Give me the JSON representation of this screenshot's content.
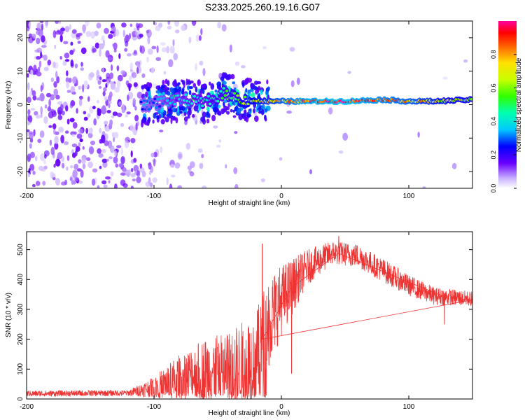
{
  "title": "S233.2025.260.19.16.G07",
  "chart_data": [
    {
      "type": "heatmap",
      "xlabel": "Height of straight line (km)",
      "ylabel": "Frequency (Hz)",
      "xlim": [
        -200,
        150
      ],
      "ylim": [
        -25,
        25
      ],
      "xticks": [
        -200,
        -100,
        0,
        100
      ],
      "yticks": [
        -20,
        -10,
        0,
        10,
        20
      ],
      "colorbar": {
        "label": "Normalized spectral amplitude",
        "range": [
          0,
          1
        ],
        "ticks": [
          "0.0",
          "0.2",
          "0.4",
          "0.6",
          "0.8"
        ]
      },
      "ridge": [
        {
          "x": -105,
          "freq": 0.0,
          "amp": 0.3
        },
        {
          "x": -90,
          "freq": 1.0,
          "amp": 0.35
        },
        {
          "x": -75,
          "freq": 1.5,
          "amp": 0.4
        },
        {
          "x": -60,
          "freq": 0.5,
          "amp": 0.45
        },
        {
          "x": -45,
          "freq": 3.5,
          "amp": 0.55
        },
        {
          "x": -30,
          "freq": 1.5,
          "amp": 0.65
        },
        {
          "x": -15,
          "freq": 1.0,
          "amp": 0.75
        },
        {
          "x": 0,
          "freq": 1.0,
          "amp": 0.85
        },
        {
          "x": 20,
          "freq": 1.0,
          "amp": 0.95
        },
        {
          "x": 50,
          "freq": 1.0,
          "amp": 1.0
        },
        {
          "x": 80,
          "freq": 1.5,
          "amp": 0.9
        },
        {
          "x": 100,
          "freq": 1.0,
          "amp": 0.85
        },
        {
          "x": 120,
          "freq": 1.0,
          "amp": 0.75
        },
        {
          "x": 150,
          "freq": 1.5,
          "amp": 0.65
        }
      ]
    },
    {
      "type": "line",
      "xlabel": "Height of straight line (km)",
      "ylabel": "SNR (10 * v/v)",
      "xlim": [
        -200,
        150
      ],
      "ylim": [
        0,
        560
      ],
      "xticks": [
        -200,
        -100,
        0,
        100
      ],
      "yticks": [
        0,
        100,
        200,
        300,
        400,
        500
      ],
      "color": "#ee3333",
      "envelope": [
        {
          "x": -200,
          "mean": 18,
          "spread": 10
        },
        {
          "x": -120,
          "mean": 20,
          "spread": 10
        },
        {
          "x": -100,
          "mean": 40,
          "spread": 35
        },
        {
          "x": -80,
          "mean": 70,
          "spread": 80
        },
        {
          "x": -60,
          "mean": 95,
          "spread": 110
        },
        {
          "x": -40,
          "mean": 100,
          "spread": 130
        },
        {
          "x": -20,
          "mean": 140,
          "spread": 150
        },
        {
          "x": -10,
          "mean": 260,
          "spread": 160
        },
        {
          "x": 0,
          "mean": 330,
          "spread": 120
        },
        {
          "x": 20,
          "mean": 440,
          "spread": 60
        },
        {
          "x": 40,
          "mean": 490,
          "spread": 40
        },
        {
          "x": 60,
          "mean": 480,
          "spread": 40
        },
        {
          "x": 80,
          "mean": 430,
          "spread": 40
        },
        {
          "x": 100,
          "mean": 380,
          "spread": 35
        },
        {
          "x": 120,
          "mean": 345,
          "spread": 30
        },
        {
          "x": 150,
          "mean": 335,
          "spread": 25
        }
      ],
      "spikes": [
        {
          "x": -15,
          "y": 520
        },
        {
          "x": 8,
          "y": 85
        },
        {
          "x": 45,
          "y": 545
        },
        {
          "x": 128,
          "y": 250
        }
      ]
    }
  ]
}
